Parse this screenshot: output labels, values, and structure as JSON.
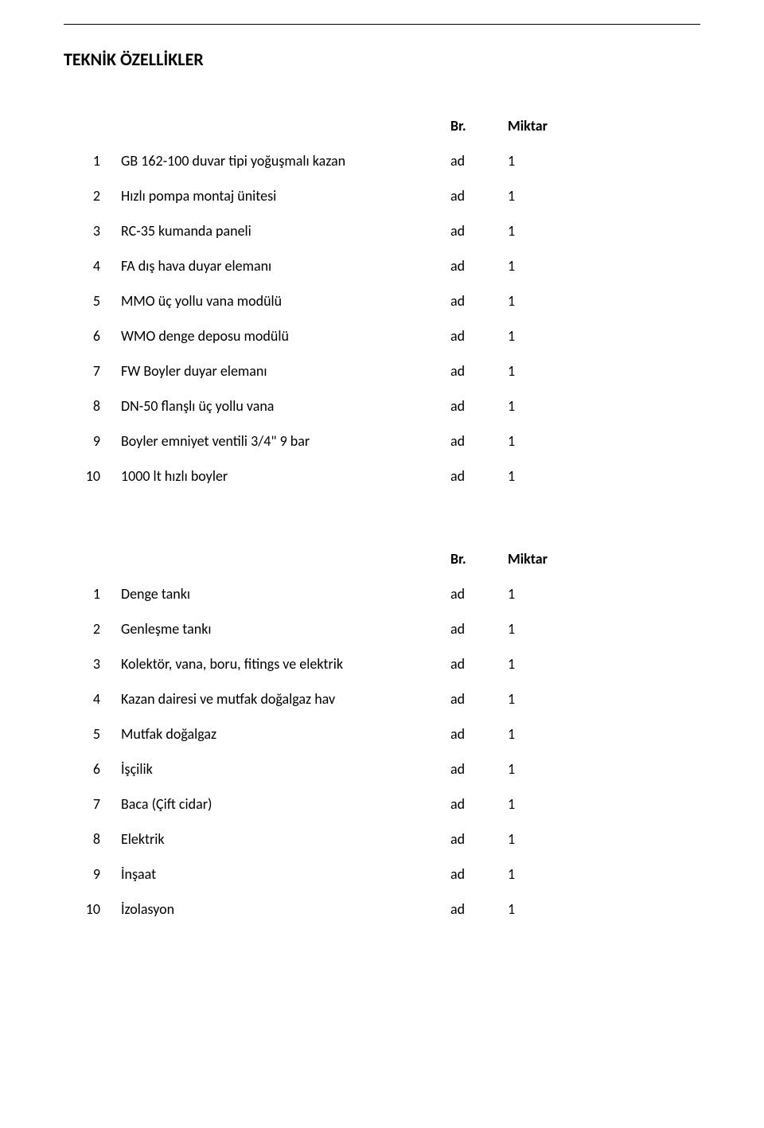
{
  "title": "TEKNİK ÖZELLİKLER",
  "header": {
    "br": "Br.",
    "miktar": "Miktar"
  },
  "table1": [
    {
      "n": "1",
      "desc": "GB 162-100 duvar tipi yoğuşmalı kazan",
      "br": "ad",
      "qty": "1"
    },
    {
      "n": "2",
      "desc": "Hızlı pompa montaj ünitesi",
      "br": "ad",
      "qty": "1"
    },
    {
      "n": "3",
      "desc": "RC-35 kumanda paneli",
      "br": "ad",
      "qty": "1"
    },
    {
      "n": "4",
      "desc": "FA dış hava duyar elemanı",
      "br": "ad",
      "qty": "1"
    },
    {
      "n": "5",
      "desc": "MMO üç yollu vana modülü",
      "br": "ad",
      "qty": "1"
    },
    {
      "n": "6",
      "desc": "WMO denge deposu modülü",
      "br": "ad",
      "qty": "1"
    },
    {
      "n": "7",
      "desc": "FW Boyler duyar elemanı",
      "br": "ad",
      "qty": "1"
    },
    {
      "n": "8",
      "desc": "DN-50 flanşlı üç yollu vana",
      "br": "ad",
      "qty": "1"
    },
    {
      "n": "9",
      "desc": "Boyler emniyet ventili 3/4\" 9 bar",
      "br": "ad",
      "qty": "1"
    },
    {
      "n": "10",
      "desc": "1000 lt hızlı boyler",
      "br": "ad",
      "qty": "1"
    }
  ],
  "table2": [
    {
      "n": "1",
      "desc": "Denge tankı",
      "br": "ad",
      "qty": "1"
    },
    {
      "n": "2",
      "desc": "Genleşme tankı",
      "br": "ad",
      "qty": "1"
    },
    {
      "n": "3",
      "desc": "Kolektör, vana, boru, fitings ve elektrik",
      "br": "ad",
      "qty": "1"
    },
    {
      "n": "4",
      "desc": "Kazan dairesi ve mutfak doğalgaz hav",
      "br": "ad",
      "qty": "1"
    },
    {
      "n": "5",
      "desc": "Mutfak doğalgaz",
      "br": "ad",
      "qty": "1"
    },
    {
      "n": "6",
      "desc": "İşçilik",
      "br": "ad",
      "qty": "1"
    },
    {
      "n": "7",
      "desc": "Baca (Çift cidar)",
      "br": "ad",
      "qty": "1"
    },
    {
      "n": "8",
      "desc": "Elektrik",
      "br": "ad",
      "qty": "1"
    },
    {
      "n": "9",
      "desc": "İnşaat",
      "br": "ad",
      "qty": "1"
    },
    {
      "n": "10",
      "desc": "İzolasyon",
      "br": "ad",
      "qty": "1"
    }
  ]
}
